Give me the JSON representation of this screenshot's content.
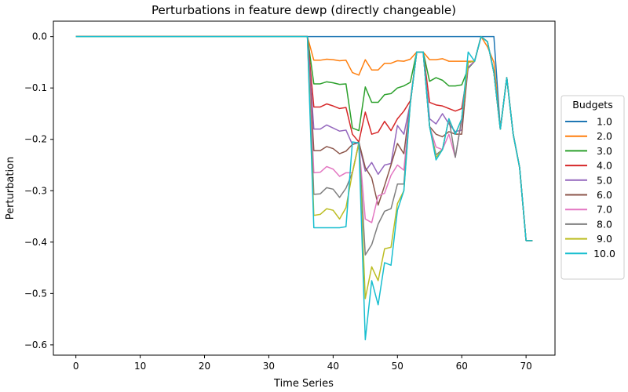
{
  "chart_data": {
    "type": "line",
    "title": "Perturbations in feature dewp (directly changeable)",
    "xlabel": "Time Series",
    "ylabel": "Perturbation",
    "xlim": [
      -3.5,
      74.5
    ],
    "ylim": [
      -0.62,
      0.03
    ],
    "x_ticks": [
      0,
      10,
      20,
      30,
      40,
      50,
      60,
      70
    ],
    "y_ticks": [
      0.0,
      -0.1,
      -0.2,
      -0.3,
      -0.4,
      -0.5,
      -0.6
    ],
    "y_tick_labels": [
      "0.0",
      "−0.1",
      "−0.2",
      "−0.3",
      "−0.4",
      "−0.5",
      "−0.6"
    ],
    "grid": false,
    "legend": {
      "title": "Budgets",
      "placement": "center-right outside"
    },
    "x": [
      0,
      1,
      2,
      3,
      4,
      5,
      6,
      7,
      8,
      9,
      10,
      11,
      12,
      13,
      14,
      15,
      16,
      17,
      18,
      19,
      20,
      21,
      22,
      23,
      24,
      25,
      26,
      27,
      28,
      29,
      30,
      31,
      32,
      33,
      34,
      35,
      36,
      37,
      38,
      39,
      40,
      41,
      42,
      43,
      44,
      45,
      46,
      47,
      48,
      49,
      50,
      51,
      52,
      53,
      54,
      55,
      56,
      57,
      58,
      59,
      60,
      61,
      62,
      63,
      64,
      65,
      66,
      67,
      68,
      69,
      70,
      71
    ],
    "series": [
      {
        "name": "1.0",
        "color": "#1f77b4",
        "values": [
          0,
          0,
          0,
          0,
          0,
          0,
          0,
          0,
          0,
          0,
          0,
          0,
          0,
          0,
          0,
          0,
          0,
          0,
          0,
          0,
          0,
          0,
          0,
          0,
          0,
          0,
          0,
          0,
          0,
          0,
          0,
          0,
          0,
          0,
          0,
          0,
          0,
          0,
          0,
          0,
          0,
          0,
          0,
          0,
          0,
          0,
          0,
          0,
          0,
          0,
          0,
          0,
          0,
          0,
          0,
          0,
          0,
          0,
          0,
          0,
          0,
          0,
          0,
          0,
          0,
          0,
          -0.18,
          -0.08,
          -0.19,
          -0.255,
          -0.397,
          -0.397
        ]
      },
      {
        "name": "2.0",
        "color": "#ff7f0e",
        "values": [
          0,
          0,
          0,
          0,
          0,
          0,
          0,
          0,
          0,
          0,
          0,
          0,
          0,
          0,
          0,
          0,
          0,
          0,
          0,
          0,
          0,
          0,
          0,
          0,
          0,
          0,
          0,
          0,
          0,
          0,
          0,
          0,
          0,
          0,
          0,
          0,
          0,
          -0.046,
          -0.046,
          -0.044,
          -0.045,
          -0.047,
          -0.046,
          -0.07,
          -0.075,
          -0.045,
          -0.065,
          -0.065,
          -0.052,
          -0.052,
          -0.047,
          -0.048,
          -0.044,
          -0.03,
          -0.03,
          -0.045,
          -0.045,
          -0.043,
          -0.048,
          -0.048,
          -0.048,
          -0.048,
          -0.048,
          0,
          -0.02,
          -0.05,
          -0.18,
          -0.08,
          -0.19,
          -0.255,
          -0.397,
          -0.397
        ]
      },
      {
        "name": "3.0",
        "color": "#2ca02c",
        "values": [
          0,
          0,
          0,
          0,
          0,
          0,
          0,
          0,
          0,
          0,
          0,
          0,
          0,
          0,
          0,
          0,
          0,
          0,
          0,
          0,
          0,
          0,
          0,
          0,
          0,
          0,
          0,
          0,
          0,
          0,
          0,
          0,
          0,
          0,
          0,
          0,
          0,
          -0.092,
          -0.092,
          -0.088,
          -0.09,
          -0.093,
          -0.092,
          -0.178,
          -0.183,
          -0.098,
          -0.128,
          -0.128,
          -0.113,
          -0.111,
          -0.1,
          -0.096,
          -0.089,
          -0.03,
          -0.03,
          -0.087,
          -0.08,
          -0.085,
          -0.096,
          -0.096,
          -0.094,
          -0.062,
          -0.048,
          0,
          -0.01,
          -0.07,
          -0.18,
          -0.08,
          -0.19,
          -0.255,
          -0.397,
          -0.397
        ]
      },
      {
        "name": "4.0",
        "color": "#d62728",
        "values": [
          0,
          0,
          0,
          0,
          0,
          0,
          0,
          0,
          0,
          0,
          0,
          0,
          0,
          0,
          0,
          0,
          0,
          0,
          0,
          0,
          0,
          0,
          0,
          0,
          0,
          0,
          0,
          0,
          0,
          0,
          0,
          0,
          0,
          0,
          0,
          0,
          0,
          -0.137,
          -0.137,
          -0.131,
          -0.135,
          -0.14,
          -0.138,
          -0.19,
          -0.205,
          -0.147,
          -0.19,
          -0.186,
          -0.165,
          -0.183,
          -0.16,
          -0.145,
          -0.125,
          -0.03,
          -0.03,
          -0.128,
          -0.133,
          -0.135,
          -0.14,
          -0.145,
          -0.14,
          -0.06,
          -0.048,
          0,
          -0.01,
          -0.07,
          -0.18,
          -0.08,
          -0.19,
          -0.255,
          -0.397,
          -0.397
        ]
      },
      {
        "name": "5.0",
        "color": "#9467bd",
        "values": [
          0,
          0,
          0,
          0,
          0,
          0,
          0,
          0,
          0,
          0,
          0,
          0,
          0,
          0,
          0,
          0,
          0,
          0,
          0,
          0,
          0,
          0,
          0,
          0,
          0,
          0,
          0,
          0,
          0,
          0,
          0,
          0,
          0,
          0,
          0,
          0,
          0,
          -0.18,
          -0.18,
          -0.172,
          -0.178,
          -0.184,
          -0.182,
          -0.21,
          -0.207,
          -0.262,
          -0.245,
          -0.268,
          -0.25,
          -0.247,
          -0.173,
          -0.19,
          -0.13,
          -0.03,
          -0.03,
          -0.16,
          -0.17,
          -0.15,
          -0.17,
          -0.185,
          -0.182,
          -0.06,
          -0.048,
          0,
          -0.01,
          -0.07,
          -0.18,
          -0.08,
          -0.19,
          -0.255,
          -0.397,
          -0.397
        ]
      },
      {
        "name": "6.0",
        "color": "#8c564b",
        "values": [
          0,
          0,
          0,
          0,
          0,
          0,
          0,
          0,
          0,
          0,
          0,
          0,
          0,
          0,
          0,
          0,
          0,
          0,
          0,
          0,
          0,
          0,
          0,
          0,
          0,
          0,
          0,
          0,
          0,
          0,
          0,
          0,
          0,
          0,
          0,
          0,
          0,
          -0.222,
          -0.222,
          -0.214,
          -0.218,
          -0.228,
          -0.223,
          -0.21,
          -0.205,
          -0.255,
          -0.275,
          -0.328,
          -0.29,
          -0.25,
          -0.208,
          -0.228,
          -0.13,
          -0.03,
          -0.03,
          -0.175,
          -0.19,
          -0.195,
          -0.185,
          -0.19,
          -0.19,
          -0.05,
          -0.048,
          0,
          -0.01,
          -0.07,
          -0.18,
          -0.08,
          -0.19,
          -0.255,
          -0.397,
          -0.397
        ]
      },
      {
        "name": "7.0",
        "color": "#e377c2",
        "values": [
          0,
          0,
          0,
          0,
          0,
          0,
          0,
          0,
          0,
          0,
          0,
          0,
          0,
          0,
          0,
          0,
          0,
          0,
          0,
          0,
          0,
          0,
          0,
          0,
          0,
          0,
          0,
          0,
          0,
          0,
          0,
          0,
          0,
          0,
          0,
          0,
          0,
          -0.265,
          -0.264,
          -0.253,
          -0.258,
          -0.272,
          -0.265,
          -0.265,
          -0.207,
          -0.355,
          -0.362,
          -0.31,
          -0.305,
          -0.27,
          -0.25,
          -0.26,
          -0.13,
          -0.03,
          -0.03,
          -0.175,
          -0.215,
          -0.22,
          -0.19,
          -0.235,
          -0.16,
          -0.05,
          -0.048,
          0,
          -0.01,
          -0.07,
          -0.18,
          -0.08,
          -0.19,
          -0.255,
          -0.397,
          -0.397
        ]
      },
      {
        "name": "8.0",
        "color": "#7f7f7f",
        "values": [
          0,
          0,
          0,
          0,
          0,
          0,
          0,
          0,
          0,
          0,
          0,
          0,
          0,
          0,
          0,
          0,
          0,
          0,
          0,
          0,
          0,
          0,
          0,
          0,
          0,
          0,
          0,
          0,
          0,
          0,
          0,
          0,
          0,
          0,
          0,
          0,
          0,
          -0.307,
          -0.306,
          -0.294,
          -0.297,
          -0.313,
          -0.295,
          -0.265,
          -0.207,
          -0.425,
          -0.405,
          -0.365,
          -0.34,
          -0.335,
          -0.287,
          -0.287,
          -0.13,
          -0.03,
          -0.03,
          -0.175,
          -0.23,
          -0.22,
          -0.16,
          -0.235,
          -0.16,
          -0.05,
          -0.048,
          0,
          -0.01,
          -0.07,
          -0.18,
          -0.08,
          -0.19,
          -0.255,
          -0.397,
          -0.397
        ]
      },
      {
        "name": "9.0",
        "color": "#bcbd22",
        "values": [
          0,
          0,
          0,
          0,
          0,
          0,
          0,
          0,
          0,
          0,
          0,
          0,
          0,
          0,
          0,
          0,
          0,
          0,
          0,
          0,
          0,
          0,
          0,
          0,
          0,
          0,
          0,
          0,
          0,
          0,
          0,
          0,
          0,
          0,
          0,
          0,
          0,
          -0.348,
          -0.346,
          -0.335,
          -0.338,
          -0.355,
          -0.333,
          -0.265,
          -0.207,
          -0.51,
          -0.448,
          -0.475,
          -0.413,
          -0.41,
          -0.325,
          -0.3,
          -0.13,
          -0.03,
          -0.03,
          -0.175,
          -0.235,
          -0.22,
          -0.16,
          -0.19,
          -0.16,
          -0.05,
          -0.048,
          0,
          -0.01,
          -0.07,
          -0.18,
          -0.08,
          -0.19,
          -0.255,
          -0.397,
          -0.397
        ]
      },
      {
        "name": "10.0",
        "color": "#17becf",
        "values": [
          0,
          0,
          0,
          0,
          0,
          0,
          0,
          0,
          0,
          0,
          0,
          0,
          0,
          0,
          0,
          0,
          0,
          0,
          0,
          0,
          0,
          0,
          0,
          0,
          0,
          0,
          0,
          0,
          0,
          0,
          0,
          0,
          0,
          0,
          0,
          0,
          0,
          -0.372,
          -0.372,
          -0.372,
          -0.372,
          -0.372,
          -0.37,
          -0.205,
          -0.207,
          -0.59,
          -0.475,
          -0.522,
          -0.44,
          -0.445,
          -0.338,
          -0.3,
          -0.13,
          -0.03,
          -0.03,
          -0.175,
          -0.24,
          -0.22,
          -0.16,
          -0.19,
          -0.16,
          -0.03,
          -0.048,
          0,
          -0.01,
          -0.07,
          -0.18,
          -0.08,
          -0.19,
          -0.255,
          -0.397,
          -0.397
        ]
      }
    ]
  }
}
